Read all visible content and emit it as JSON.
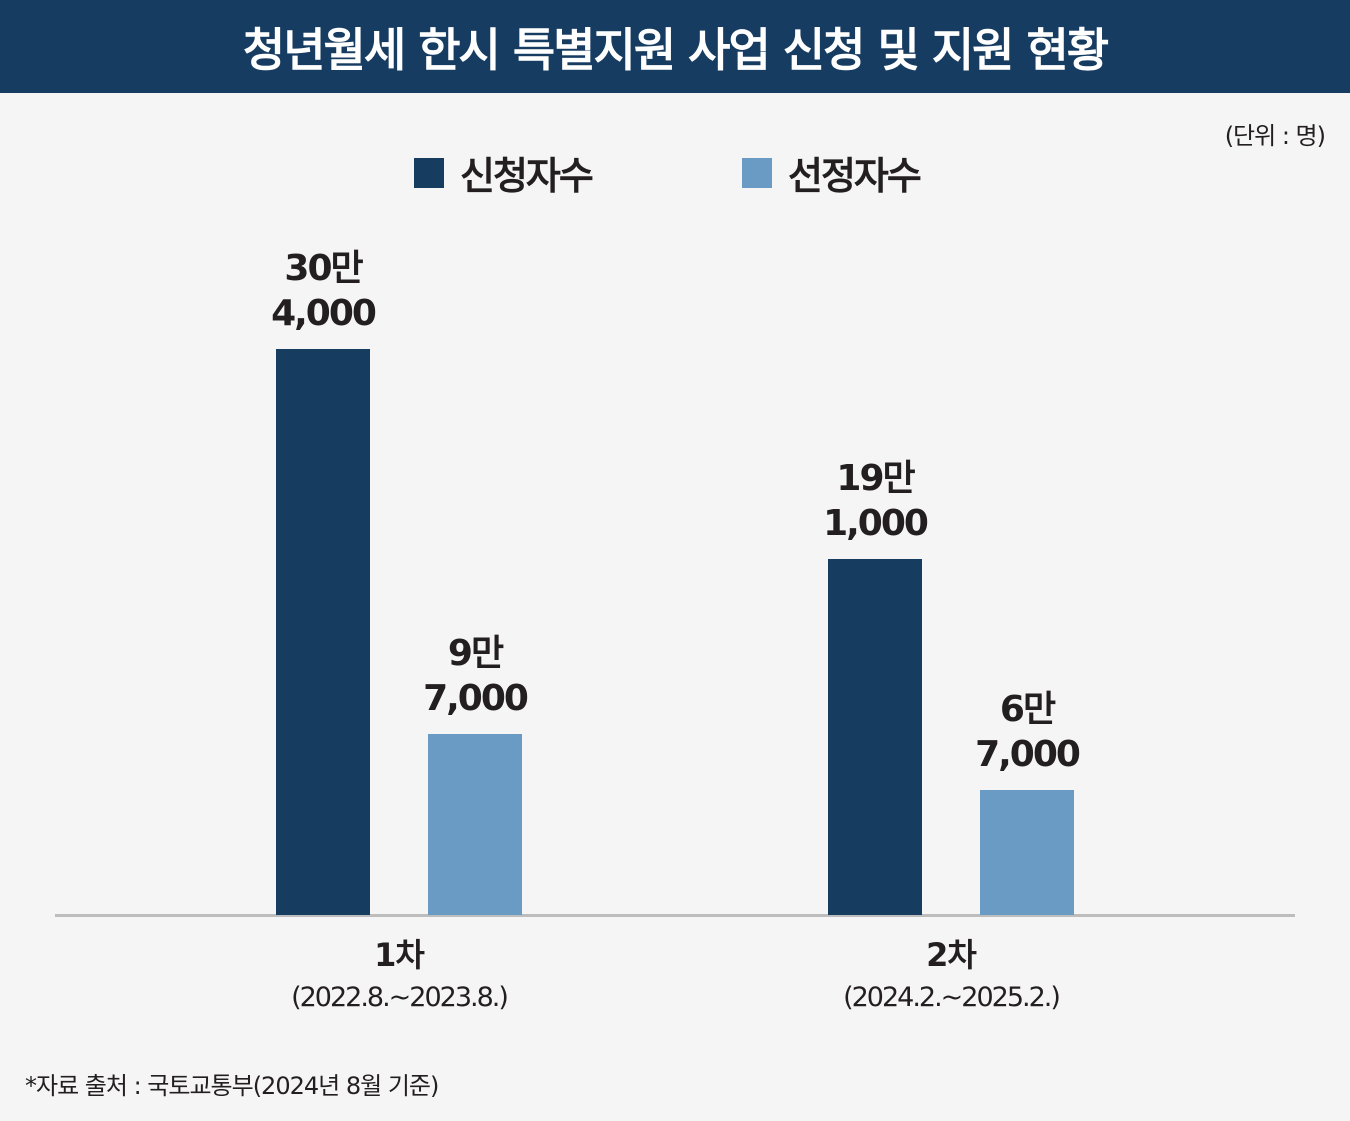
{
  "header": {
    "title": "청년월세 한시 특별지원 사업 신청 및 지원 현황"
  },
  "unit": "(단위 : 명)",
  "footnote": "*자료 출처 : 국토교통부(2024년 8월 기준)",
  "colors": {
    "header": "#173c61",
    "applicants": "#163c60",
    "selected": "#6a9bc4"
  },
  "chart_data": {
    "type": "bar",
    "title": "청년월세 한시 특별지원 사업 신청 및 지원 현황",
    "categories": [
      {
        "name": "1차",
        "period": "(2022.8.~2023.8.)"
      },
      {
        "name": "2차",
        "period": "(2024.2.~2025.2.)"
      }
    ],
    "series": [
      {
        "name": "신청자수",
        "values": [
          304000,
          191000
        ],
        "labels": [
          [
            "30만",
            "4,000"
          ],
          [
            "19만",
            "1,000"
          ]
        ]
      },
      {
        "name": "선정자수",
        "values": [
          97000,
          67000
        ],
        "labels": [
          [
            "9만",
            "7,000"
          ],
          [
            "6만",
            "7,000"
          ]
        ]
      }
    ],
    "ylim": [
      0,
      350000
    ],
    "ylabel": "명",
    "grid": false,
    "legend": "top-center"
  }
}
